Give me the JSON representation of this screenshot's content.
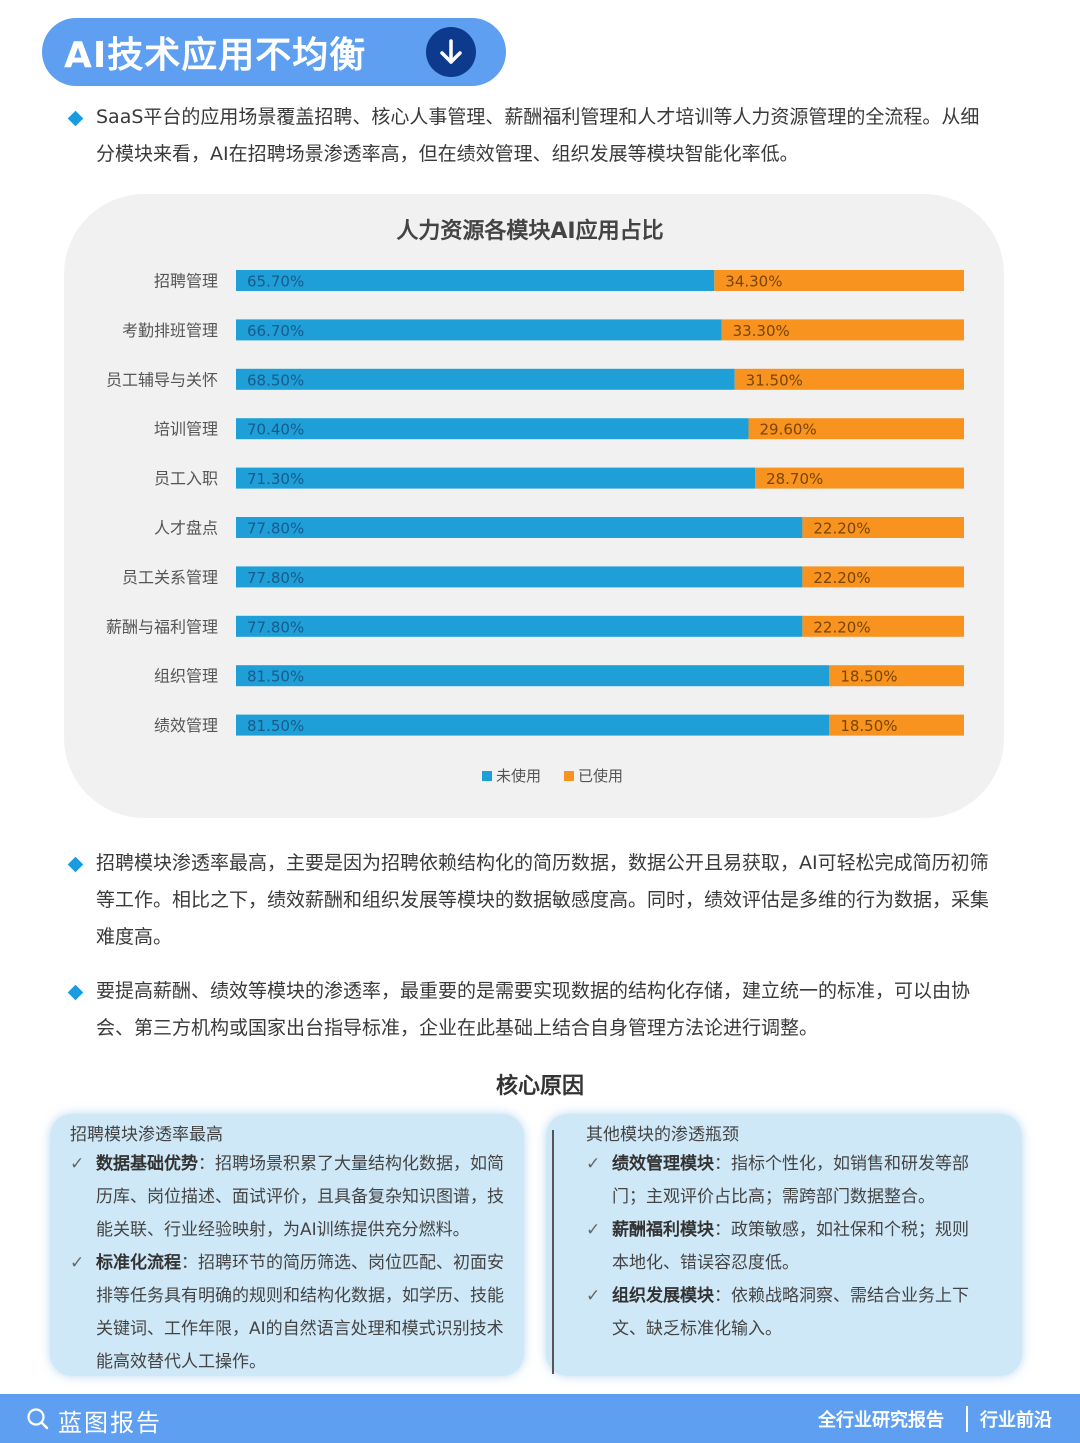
{
  "header": {
    "title": "AI技术应用不均衡"
  },
  "intro": "SaaS平台的应用场景覆盖招聘、核心人事管理、薪酬福利管理和人才培训等人力资源管理的全流程。从细分模块来看，AI在招聘场景渗透率高，但在绩效管理、组织发展等模块智能化率低。",
  "chart_data": {
    "type": "bar",
    "stacked": true,
    "orientation": "horizontal",
    "title": "人力资源各模块AI应用占比",
    "categories": [
      "招聘管理",
      "考勤排班管理",
      "员工辅导与关怀",
      "培训管理",
      "员工入职",
      "人才盘点",
      "员工关系管理",
      "薪酬与福利管理",
      "组织管理",
      "绩效管理"
    ],
    "series": [
      {
        "name": "未使用",
        "color": "#1e9fd8",
        "values": [
          65.7,
          66.7,
          68.5,
          70.4,
          71.3,
          77.8,
          77.8,
          77.8,
          81.5,
          81.5
        ],
        "labels": [
          "65.70%",
          "66.70%",
          "68.50%",
          "70.40%",
          "71.30%",
          "77.80%",
          "77.80%",
          "77.80%",
          "81.50%",
          "81.50%"
        ]
      },
      {
        "name": "已使用",
        "color": "#f7931e",
        "values": [
          34.3,
          33.3,
          31.5,
          29.6,
          28.7,
          22.2,
          22.2,
          22.2,
          18.5,
          18.5
        ],
        "labels": [
          "34.30%",
          "33.30%",
          "31.50%",
          "29.60%",
          "28.70%",
          "22.20%",
          "22.20%",
          "22.20%",
          "18.50%",
          "18.50%"
        ]
      }
    ],
    "xlim": [
      0,
      100
    ],
    "legend_position": "bottom"
  },
  "para2": "招聘模块渗透率最高，主要是因为招聘依赖结构化的简历数据，数据公开且易获取，AI可轻松完成简历初筛等工作。相比之下，绩效薪酬和组织发展等模块的数据敏感度高。同时，绩效评估是多维的行为数据，采集难度高。",
  "para3": "要提高薪酬、绩效等模块的渗透率，最重要的是需要实现数据的结构化存储，建立统一的标准，可以由协会、第三方机构或国家出台指导标准，企业在此基础上结合自身管理方法论进行调整。",
  "core": {
    "title": "核心原因",
    "left": {
      "heading": "招聘模块渗透率最高",
      "items": [
        {
          "key": "数据基础优势",
          "text": "：招聘场景积累了大量结构化数据，如简历库、岗位描述、面试评价，且具备复杂知识图谱，技能关联、行业经验映射，为AI训练提供充分燃料。"
        },
        {
          "key": "标准化流程",
          "text": "：招聘环节的简历筛选、岗位匹配、初面安排等任务具有明确的规则和结构化数据，如学历、技能关键词、工作年限，AI的自然语言处理和模式识别技术能高效替代人工操作。"
        }
      ]
    },
    "right": {
      "heading": "其他模块的渗透瓶颈",
      "items": [
        {
          "key": "绩效管理模块",
          "text": "：指标个性化，如销售和研发等部门；主观评价占比高；需跨部门数据整合。"
        },
        {
          "key": "薪酬福利模块",
          "text": "：政策敏感，如社保和个税；规则本地化、错误容忍度低。"
        },
        {
          "key": "组织发展模块",
          "text": "：依赖战略洞察、需结合业务上下文、缺乏标准化输入。"
        }
      ]
    }
  },
  "footer": {
    "brand": "蓝图报告",
    "tag1": "全行业研究报告",
    "tag2": "行业前沿"
  },
  "icons": {
    "down": "arrow-down-icon",
    "search": "search-icon",
    "check": "check-icon",
    "bullet": "diamond-bullet-icon"
  }
}
